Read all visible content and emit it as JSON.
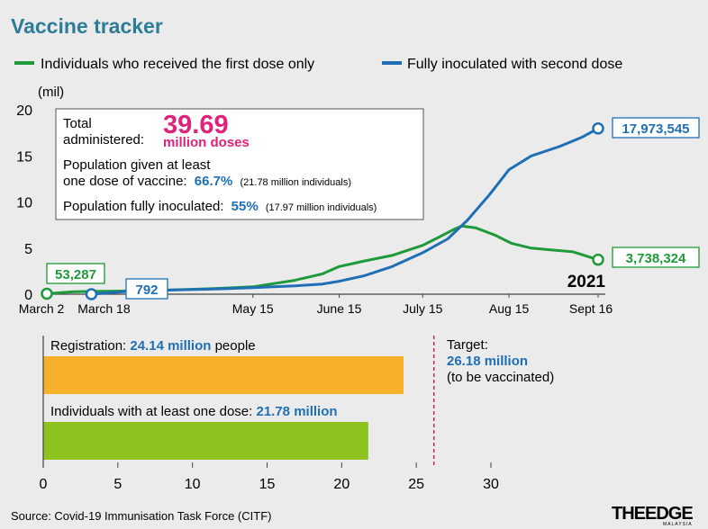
{
  "title": "Vaccine tracker",
  "source": "Source: Covid-19 Immunisation Task Force (CITF)",
  "logo": {
    "text": "THEEDGE",
    "subtext": "MALAYSIA"
  },
  "colors": {
    "title": "#2e7d96",
    "first_dose": "#1f9a3b",
    "full_dose": "#1f6fb5",
    "highlight": "#e0227a",
    "blue_text": "#1f6fb5",
    "registration_bar": "#f6b02a",
    "one_dose_bar": "#8dc21f",
    "target_line": "#c0152d"
  },
  "info_box": {
    "total_label_1": "Total",
    "total_label_2": "administered:",
    "total_value": "39.69",
    "total_unit": "million doses",
    "pop_one_1": "Population given at least",
    "pop_one_2": "one dose of vaccine:",
    "pop_one_pct": "66.7%",
    "pop_one_note": "(21.78 million individuals)",
    "pop_full": "Population fully inoculated:",
    "pop_full_pct": "55%",
    "pop_full_note": "(17.97 million individuals)"
  },
  "chart_data": [
    {
      "type": "line",
      "legend_position": "top",
      "ylabel": "(mil)",
      "ylim": [
        0,
        20
      ],
      "yticks": [
        0,
        5,
        10,
        15,
        20
      ],
      "xtick_labels": [
        "March 2",
        "March 18",
        "May 15",
        "June 15",
        "July 15",
        "Aug 15",
        "Sept 16"
      ],
      "xtick_days": [
        1,
        17,
        75,
        106,
        136,
        167,
        199
      ],
      "x_units": "days since March 1, 2021",
      "year_label": "2021",
      "series": [
        {
          "name": "Individuals who received the first dose only",
          "color": "#1f9a3b",
          "x": [
            1,
            10,
            17,
            30,
            45,
            60,
            75,
            90,
            100,
            106,
            115,
            125,
            136,
            142,
            147,
            150,
            155,
            162,
            168,
            175,
            182,
            190,
            199
          ],
          "y": [
            0.053,
            0.25,
            0.3,
            0.35,
            0.45,
            0.6,
            0.8,
            1.5,
            2.2,
            3.0,
            3.6,
            4.2,
            5.3,
            6.2,
            7.0,
            7.4,
            7.2,
            6.4,
            5.5,
            5.0,
            4.8,
            4.6,
            3.74
          ],
          "start_label": "53,287",
          "end_label": "3,738,324"
        },
        {
          "name": "Fully inoculated with second dose",
          "color": "#1f6fb5",
          "x": [
            17,
            30,
            45,
            60,
            75,
            90,
            100,
            106,
            115,
            125,
            136,
            145,
            152,
            160,
            167,
            175,
            185,
            193,
            199
          ],
          "y": [
            0.0008,
            0.3,
            0.45,
            0.55,
            0.7,
            0.9,
            1.1,
            1.4,
            2.0,
            3.0,
            4.5,
            6.0,
            8.0,
            10.8,
            13.5,
            15.0,
            16.0,
            17.0,
            17.97
          ],
          "start_label": "792",
          "end_label": "17,973,545"
        }
      ]
    },
    {
      "type": "bar",
      "orientation": "horizontal",
      "xlim": [
        0,
        30
      ],
      "xticks": [
        0,
        5,
        10,
        15,
        20,
        25,
        30
      ],
      "categories": [
        "Registration",
        "Individuals with at least one dose"
      ],
      "values": [
        24.14,
        21.78
      ],
      "bar_labels": [
        {
          "prefix": "Registration: ",
          "value": "24.14 million",
          "suffix": " people"
        },
        {
          "prefix": "Individuals with at least one dose: ",
          "value": "21.78 million",
          "suffix": ""
        }
      ],
      "target": {
        "value": 26.18,
        "label_1": "Target:",
        "label_2": "26.18 million",
        "label_3": "(to be vaccinated)"
      }
    }
  ]
}
